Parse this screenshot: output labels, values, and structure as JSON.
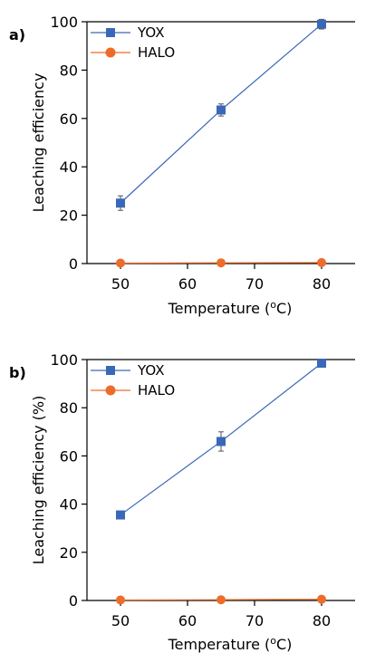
{
  "colors": {
    "yox": "#3a68b8",
    "halo": "#ee6c2a",
    "axis": "#000000"
  },
  "chart_data": [
    {
      "type": "line",
      "panel_label": "a)",
      "xlabel": "Temperature (",
      "xlabel_sup": "o",
      "xlabel_end": "C)",
      "ylabel": "Leaching efficiency",
      "xlim": [
        45,
        85
      ],
      "ylim": [
        0,
        100
      ],
      "xticks": [
        50,
        60,
        70,
        80
      ],
      "yticks": [
        0,
        20,
        40,
        60,
        80,
        100
      ],
      "legend_position": "top-left",
      "series": [
        {
          "name": "YOX",
          "marker": "square",
          "x": [
            50,
            65,
            80
          ],
          "y": [
            25,
            63.5,
            99
          ],
          "err": [
            3,
            2.5,
            2
          ]
        },
        {
          "name": "HALO",
          "marker": "circle",
          "x": [
            50,
            65,
            80
          ],
          "y": [
            0.2,
            0.3,
            0.4
          ],
          "err": [
            0,
            0,
            0
          ]
        }
      ]
    },
    {
      "type": "line",
      "panel_label": "b)",
      "xlabel": "Temperature (",
      "xlabel_sup": "o",
      "xlabel_end": "C)",
      "ylabel": "Leaching efficiency (%)",
      "xlim": [
        45,
        85
      ],
      "ylim": [
        0,
        100
      ],
      "xticks": [
        50,
        60,
        70,
        80
      ],
      "yticks": [
        0,
        20,
        40,
        60,
        80,
        100
      ],
      "legend_position": "top-left",
      "series": [
        {
          "name": "YOX",
          "marker": "square",
          "x": [
            50,
            65,
            80
          ],
          "y": [
            35.5,
            66,
            98.5
          ],
          "err": [
            1,
            4,
            1
          ]
        },
        {
          "name": "HALO",
          "marker": "circle",
          "x": [
            50,
            65,
            80
          ],
          "y": [
            0.2,
            0.3,
            0.5
          ],
          "err": [
            0,
            0,
            0
          ]
        }
      ]
    }
  ]
}
